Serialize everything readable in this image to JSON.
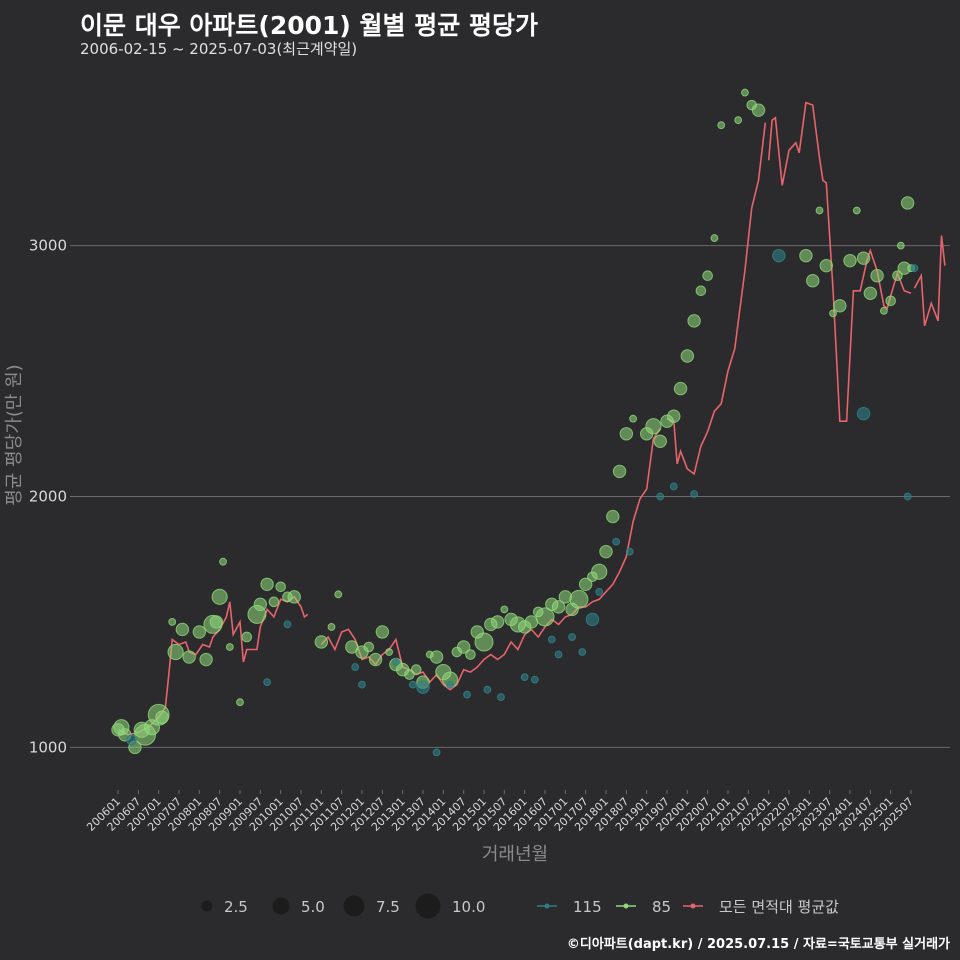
{
  "header": {
    "title": "이문 대우 아파트(2001) 월별 평균 평당가",
    "subtitle": "2006-02-15 ~ 2025-07-03(최근계약일)"
  },
  "footer": {
    "credit": "©디아파트(dapt.kr) / 2025.07.15 / 자료=국토교통부 실거래가"
  },
  "colors": {
    "background": "#2b2b2d",
    "grid": "#6b6b6b",
    "series_115": "#2e7f85",
    "series_85": "#8fd97a",
    "series_avg": "#e8636b"
  },
  "chart_data": {
    "type": "line+scatter",
    "xlabel": "거래년월",
    "ylabel": "평균 평당가(만 원)",
    "ylim": [
      830,
      3700
    ],
    "yticks": [
      1000,
      2000,
      3000
    ],
    "x_start": "2006-01",
    "x_end": "2025-07",
    "xticks": [
      "200601",
      "200607",
      "200701",
      "200707",
      "200801",
      "200807",
      "200901",
      "200907",
      "201001",
      "201007",
      "201101",
      "201107",
      "201201",
      "201207",
      "201301",
      "201307",
      "201401",
      "201407",
      "201501",
      "201507",
      "201601",
      "201607",
      "201701",
      "201707",
      "201801",
      "201807",
      "201901",
      "201907",
      "202001",
      "202007",
      "202101",
      "202107",
      "202201",
      "202207",
      "202301",
      "202307",
      "202401",
      "202407",
      "202501",
      "202507"
    ],
    "legend": {
      "size_title": "",
      "sizes": [
        {
          "value": 2.5,
          "label": "2.5"
        },
        {
          "value": 5.0,
          "label": "5.0"
        },
        {
          "value": 7.5,
          "label": "7.5"
        },
        {
          "value": 10.0,
          "label": "10.0"
        }
      ],
      "series": [
        {
          "key": "s115",
          "label": "115"
        },
        {
          "key": "s85",
          "label": "85"
        },
        {
          "key": "avg",
          "label": "모든 면적대 평균값"
        }
      ]
    },
    "series_avg": {
      "name": "모든 면적대 평균값",
      "points": [
        [
          "2006-01",
          1070
        ],
        [
          "2006-04",
          1050
        ],
        [
          "2006-07",
          1060
        ],
        [
          "2006-10",
          1080
        ],
        [
          "2007-01",
          1120
        ],
        [
          "2007-03",
          1160
        ],
        [
          "2007-04",
          1290
        ],
        [
          "2007-05",
          1430
        ],
        [
          "2007-07",
          1410
        ],
        [
          "2007-09",
          1420
        ],
        [
          "2007-10",
          1380
        ],
        [
          "2007-12",
          1370
        ],
        [
          "2008-02",
          1410
        ],
        [
          "2008-04",
          1400
        ],
        [
          "2008-05",
          1440
        ],
        [
          "2008-07",
          1470
        ],
        [
          "2008-09",
          1520
        ],
        [
          "2008-10",
          1580
        ],
        [
          "2008-11",
          1450
        ],
        [
          "2009-01",
          1500
        ],
        [
          "2009-02",
          1340
        ],
        [
          "2009-03",
          1390
        ],
        [
          "2009-06",
          1390
        ],
        [
          "2009-07",
          1480
        ],
        [
          "2009-09",
          1550
        ],
        [
          "2009-11",
          1520
        ],
        [
          "2010-01",
          1590
        ],
        [
          "2010-03",
          1580
        ],
        [
          "2010-05",
          1600
        ],
        [
          "2010-07",
          1560
        ],
        [
          "2010-08",
          1520
        ],
        [
          "2010-09",
          1530
        ],
        null,
        [
          "2011-01",
          1410
        ],
        [
          "2011-03",
          1440
        ],
        [
          "2011-05",
          1390
        ],
        [
          "2011-07",
          1460
        ],
        [
          "2011-09",
          1470
        ],
        [
          "2011-11",
          1430
        ],
        [
          "2012-01",
          1350
        ],
        [
          "2012-03",
          1360
        ],
        [
          "2012-05",
          1330
        ],
        [
          "2012-07",
          1370
        ],
        [
          "2012-09",
          1390
        ],
        [
          "2012-11",
          1430
        ],
        [
          "2013-01",
          1320
        ],
        [
          "2013-03",
          1310
        ],
        [
          "2013-05",
          1290
        ],
        [
          "2013-07",
          1300
        ],
        [
          "2013-09",
          1260
        ],
        [
          "2013-11",
          1290
        ],
        [
          "2014-01",
          1250
        ],
        [
          "2014-03",
          1230
        ],
        [
          "2014-05",
          1250
        ],
        [
          "2014-07",
          1310
        ],
        [
          "2014-09",
          1300
        ],
        [
          "2014-11",
          1320
        ],
        [
          "2015-01",
          1350
        ],
        [
          "2015-03",
          1370
        ],
        [
          "2015-05",
          1350
        ],
        [
          "2015-07",
          1370
        ],
        [
          "2015-09",
          1420
        ],
        [
          "2015-11",
          1390
        ],
        [
          "2016-01",
          1450
        ],
        [
          "2016-03",
          1470
        ],
        [
          "2016-05",
          1440
        ],
        [
          "2016-07",
          1480
        ],
        [
          "2016-09",
          1510
        ],
        [
          "2016-11",
          1490
        ],
        [
          "2017-01",
          1520
        ],
        [
          "2017-03",
          1530
        ],
        [
          "2017-05",
          1560
        ],
        [
          "2017-07",
          1560
        ],
        [
          "2017-09",
          1580
        ],
        [
          "2017-11",
          1590
        ],
        [
          "2018-01",
          1620
        ],
        [
          "2018-03",
          1650
        ],
        [
          "2018-05",
          1700
        ],
        [
          "2018-07",
          1760
        ],
        [
          "2018-09",
          1900
        ],
        [
          "2018-11",
          1990
        ],
        [
          "2019-01",
          2030
        ],
        [
          "2019-03",
          2230
        ],
        [
          "2019-05",
          2270
        ],
        null,
        [
          "2019-07",
          2310
        ],
        [
          "2019-09",
          2300
        ],
        [
          "2019-10",
          2130
        ],
        [
          "2019-11",
          2180
        ],
        [
          "2020-01",
          2110
        ],
        [
          "2020-03",
          2090
        ],
        [
          "2020-05",
          2200
        ],
        [
          "2020-07",
          2260
        ],
        [
          "2020-09",
          2340
        ],
        [
          "2020-11",
          2370
        ],
        [
          "2021-01",
          2500
        ],
        [
          "2021-03",
          2590
        ],
        [
          "2021-05",
          2800
        ],
        [
          "2021-06",
          2900
        ],
        [
          "2021-08",
          3150
        ],
        [
          "2021-10",
          3260
        ],
        [
          "2021-12",
          3490
        ],
        null,
        [
          "2022-01",
          3340
        ],
        [
          "2022-02",
          3500
        ],
        [
          "2022-03",
          3510
        ],
        [
          "2022-05",
          3240
        ],
        [
          "2022-07",
          3380
        ],
        [
          "2022-09",
          3410
        ],
        [
          "2022-10",
          3370
        ],
        [
          "2022-12",
          3570
        ],
        [
          "2023-02",
          3560
        ],
        [
          "2023-04",
          3350
        ],
        [
          "2023-05",
          3260
        ],
        [
          "2023-06",
          3250
        ],
        [
          "2023-08",
          2820
        ],
        [
          "2023-10",
          2300
        ],
        [
          "2023-12",
          2300
        ],
        [
          "2024-02",
          2820
        ],
        [
          "2024-04",
          2820
        ],
        [
          "2024-06",
          2940
        ],
        [
          "2024-07",
          2980
        ],
        [
          "2024-09",
          2900
        ],
        [
          "2024-11",
          2760
        ],
        [
          "2024-12",
          2750
        ],
        [
          "2025-01",
          2800
        ],
        [
          "2025-03",
          2890
        ],
        [
          "2025-05",
          2820
        ],
        [
          "2025-07",
          2810
        ],
        null,
        [
          "2025-08",
          2830
        ],
        [
          "2025-10",
          2880
        ],
        [
          "2025-11",
          2680
        ],
        [
          "2026-01",
          2770
        ],
        [
          "2026-03",
          2700
        ],
        [
          "2026-04",
          3040
        ],
        [
          "2026-05",
          2920
        ]
      ]
    },
    "series_85": {
      "name": "85",
      "points": [
        [
          "2006-01",
          1070,
          3
        ],
        [
          "2006-02",
          1080,
          4
        ],
        [
          "2006-03",
          1050,
          3
        ],
        [
          "2006-06",
          1000,
          3
        ],
        [
          "2006-08",
          1070,
          4
        ],
        [
          "2006-09",
          1050,
          6
        ],
        [
          "2006-11",
          1080,
          4
        ],
        [
          "2007-01",
          1130,
          6
        ],
        [
          "2007-02",
          1120,
          3
        ],
        [
          "2007-05",
          1500,
          1
        ],
        [
          "2007-06",
          1380,
          4
        ],
        [
          "2007-08",
          1470,
          3
        ],
        [
          "2007-10",
          1360,
          3
        ],
        [
          "2008-01",
          1460,
          3
        ],
        [
          "2008-03",
          1350,
          3
        ],
        [
          "2008-05",
          1490,
          5
        ],
        [
          "2008-06",
          1500,
          3
        ],
        [
          "2008-07",
          1600,
          4
        ],
        [
          "2008-08",
          1740,
          1
        ],
        [
          "2008-10",
          1400,
          1
        ],
        [
          "2009-01",
          1180,
          1
        ],
        [
          "2009-03",
          1440,
          2
        ],
        [
          "2009-06",
          1530,
          5
        ],
        [
          "2009-07",
          1570,
          3
        ],
        [
          "2009-09",
          1650,
          3
        ],
        [
          "2009-11",
          1580,
          2
        ],
        [
          "2010-01",
          1640,
          2
        ],
        [
          "2010-03",
          1600,
          2
        ],
        [
          "2010-05",
          1600,
          3
        ],
        [
          "2011-01",
          1420,
          3
        ],
        [
          "2011-04",
          1480,
          1
        ],
        [
          "2011-06",
          1610,
          1
        ],
        [
          "2011-10",
          1400,
          3
        ],
        [
          "2012-01",
          1380,
          3
        ],
        [
          "2012-03",
          1400,
          2
        ],
        [
          "2012-05",
          1350,
          3
        ],
        [
          "2012-07",
          1460,
          3
        ],
        [
          "2012-09",
          1380,
          1
        ],
        [
          "2012-11",
          1330,
          3
        ],
        [
          "2013-01",
          1310,
          3
        ],
        [
          "2013-03",
          1290,
          2
        ],
        [
          "2013-05",
          1310,
          2
        ],
        [
          "2013-07",
          1260,
          3
        ],
        [
          "2013-09",
          1370,
          1
        ],
        [
          "2013-11",
          1360,
          3
        ],
        [
          "2014-01",
          1300,
          4
        ],
        [
          "2014-03",
          1270,
          4
        ],
        [
          "2014-05",
          1380,
          2
        ],
        [
          "2014-07",
          1400,
          3
        ],
        [
          "2014-09",
          1370,
          2
        ],
        [
          "2014-11",
          1460,
          3
        ],
        [
          "2015-01",
          1420,
          5
        ],
        [
          "2015-03",
          1490,
          3
        ],
        [
          "2015-05",
          1500,
          3
        ],
        [
          "2015-07",
          1550,
          1
        ],
        [
          "2015-09",
          1510,
          3
        ],
        [
          "2015-11",
          1490,
          4
        ],
        [
          "2016-01",
          1480,
          3
        ],
        [
          "2016-03",
          1500,
          3
        ],
        [
          "2016-05",
          1540,
          2
        ],
        [
          "2016-07",
          1520,
          5
        ],
        [
          "2016-09",
          1570,
          3
        ],
        [
          "2016-11",
          1560,
          3
        ],
        [
          "2017-01",
          1600,
          3
        ],
        [
          "2017-03",
          1550,
          3
        ],
        [
          "2017-05",
          1590,
          5
        ],
        [
          "2017-07",
          1650,
          3
        ],
        [
          "2017-09",
          1680,
          2
        ],
        [
          "2017-11",
          1700,
          4
        ],
        [
          "2018-01",
          1780,
          3
        ],
        [
          "2018-03",
          1920,
          3
        ],
        [
          "2018-05",
          2100,
          3
        ],
        [
          "2018-07",
          2250,
          3
        ],
        [
          "2018-09",
          2310,
          1
        ],
        [
          "2019-01",
          2250,
          3
        ],
        [
          "2019-03",
          2280,
          4
        ],
        [
          "2019-05",
          2220,
          3
        ],
        [
          "2019-07",
          2300,
          3
        ],
        [
          "2019-09",
          2320,
          3
        ],
        [
          "2019-11",
          2430,
          3
        ],
        [
          "2020-01",
          2560,
          3
        ],
        [
          "2020-03",
          2700,
          3
        ],
        [
          "2020-05",
          2820,
          2
        ],
        [
          "2020-07",
          2880,
          2
        ],
        [
          "2020-09",
          3030,
          1
        ],
        [
          "2020-11",
          3480,
          1
        ],
        [
          "2021-04",
          3500,
          1
        ],
        [
          "2021-06",
          3610,
          1
        ],
        [
          "2021-08",
          3560,
          2
        ],
        [
          "2021-10",
          3540,
          3
        ],
        [
          "2022-12",
          2960,
          3
        ],
        [
          "2023-02",
          2860,
          3
        ],
        [
          "2023-04",
          3140,
          1
        ],
        [
          "2023-06",
          2920,
          3
        ],
        [
          "2023-08",
          2730,
          1
        ],
        [
          "2023-10",
          2760,
          3
        ],
        [
          "2024-01",
          2940,
          3
        ],
        [
          "2024-03",
          3140,
          1
        ],
        [
          "2024-05",
          2950,
          3
        ],
        [
          "2024-07",
          2810,
          3
        ],
        [
          "2024-09",
          2880,
          3
        ],
        [
          "2024-11",
          2740,
          1
        ],
        [
          "2025-01",
          2780,
          2
        ],
        [
          "2025-03",
          2880,
          2
        ],
        [
          "2025-04",
          3000,
          1
        ],
        [
          "2025-05",
          2910,
          3
        ],
        [
          "2025-06",
          3170,
          3
        ],
        [
          "2025-07",
          2910,
          1
        ]
      ]
    },
    "series_115": {
      "name": "115",
      "points": [
        [
          "2006-05",
          1030,
          2
        ],
        [
          "2009-09",
          1260,
          1
        ],
        [
          "2010-03",
          1490,
          1
        ],
        [
          "2011-11",
          1320,
          1
        ],
        [
          "2012-01",
          1250,
          1
        ],
        [
          "2012-11",
          1340,
          1
        ],
        [
          "2013-04",
          1250,
          1
        ],
        [
          "2013-07",
          1240,
          3
        ],
        [
          "2013-11",
          980,
          1
        ],
        [
          "2014-03",
          1250,
          1
        ],
        [
          "2014-08",
          1210,
          1
        ],
        [
          "2015-02",
          1230,
          1
        ],
        [
          "2015-06",
          1200,
          1
        ],
        [
          "2016-01",
          1280,
          1
        ],
        [
          "2016-04",
          1270,
          1
        ],
        [
          "2016-09",
          1430,
          1
        ],
        [
          "2016-11",
          1370,
          1
        ],
        [
          "2017-03",
          1440,
          1
        ],
        [
          "2017-06",
          1380,
          1
        ],
        [
          "2017-09",
          1510,
          3
        ],
        [
          "2017-11",
          1620,
          1
        ],
        [
          "2018-04",
          1820,
          1
        ],
        [
          "2018-08",
          1780,
          1
        ],
        [
          "2019-05",
          2000,
          1
        ],
        [
          "2019-09",
          2040,
          1
        ],
        [
          "2020-03",
          2010,
          1
        ],
        [
          "2022-04",
          2960,
          3
        ],
        [
          "2024-05",
          2330,
          3
        ],
        [
          "2025-06",
          2000,
          1
        ],
        [
          "2025-08",
          2910,
          1
        ]
      ]
    }
  }
}
